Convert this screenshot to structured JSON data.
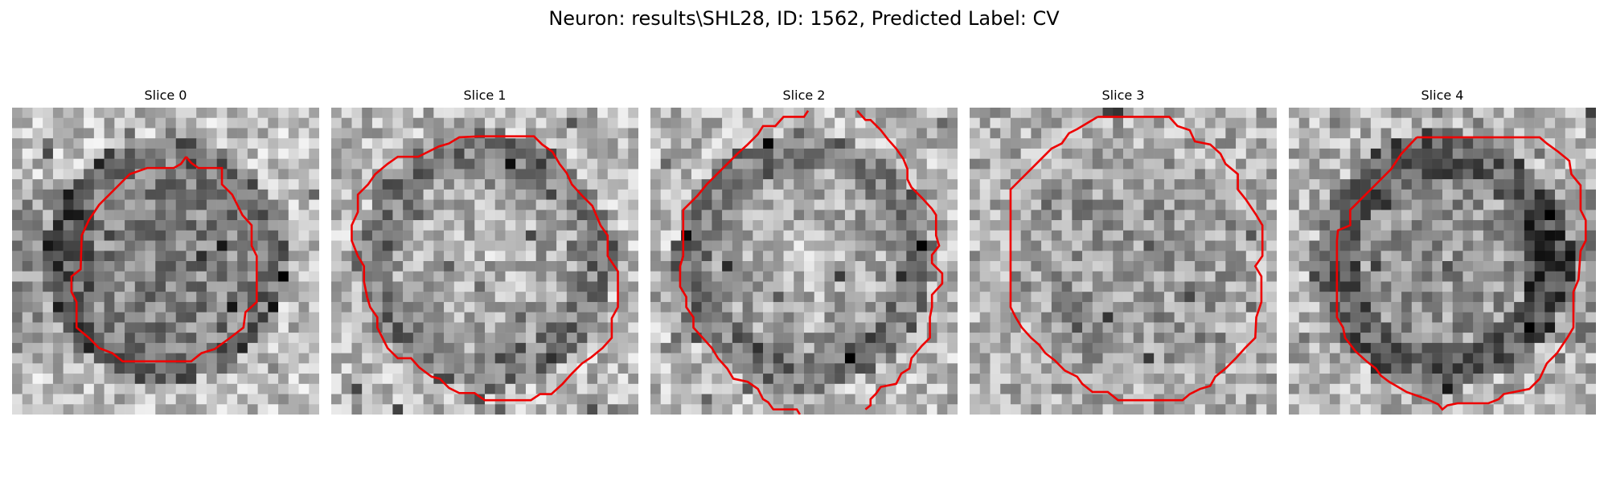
{
  "figure": {
    "title": "Neuron: results\\SHL28, ID: 1562, Predicted Label: CV"
  },
  "contour_color": "#ee0000",
  "grid_size": 30,
  "slices": [
    {
      "title": "Slice 0",
      "seed": 17,
      "contrast": "dark-rim-left"
    },
    {
      "title": "Slice 1",
      "seed": 41,
      "contrast": "light-center"
    },
    {
      "title": "Slice 2",
      "seed": 73,
      "contrast": "light-center"
    },
    {
      "title": "Slice 3",
      "seed": 97,
      "contrast": "mid"
    },
    {
      "title": "Slice 4",
      "seed": 131,
      "contrast": "dark-rim-right"
    }
  ]
}
